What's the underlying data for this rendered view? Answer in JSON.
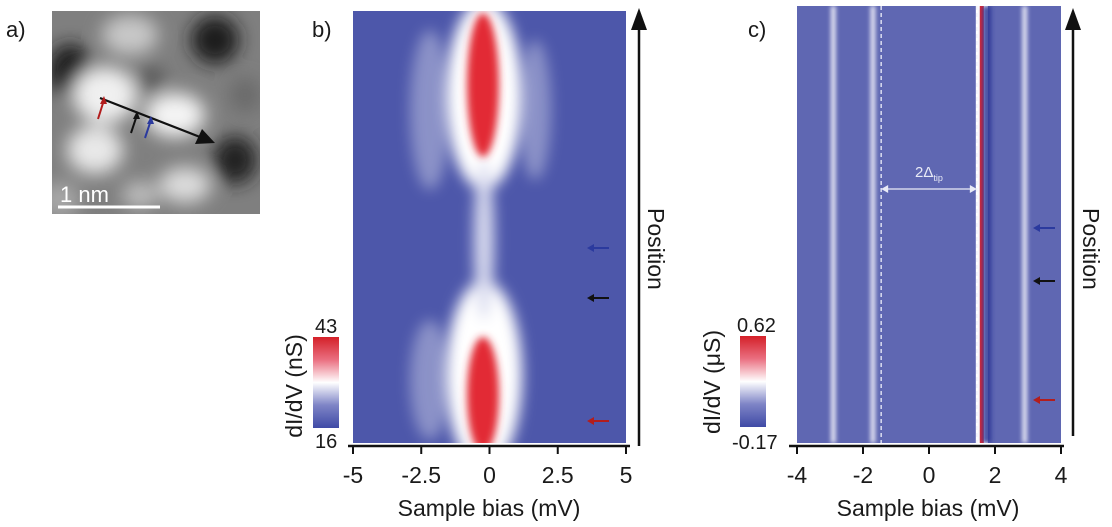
{
  "panels": {
    "a": {
      "label": "a)",
      "scale_bar": "1 nm",
      "arrow_colors": [
        "#b21d1d",
        "#111111",
        "#2b3a9e"
      ]
    },
    "b": {
      "label": "b)",
      "position_label": "Position",
      "colorbar": {
        "label": "dI/dV (nS)",
        "max": "43",
        "min": "16"
      },
      "xlabel": "Sample bias (mV)",
      "xticks": [
        "-5",
        "-2.5",
        "0",
        "2.5",
        "5"
      ]
    },
    "c": {
      "label": "c)",
      "position_label": "Position",
      "colorbar": {
        "label": "dI/dV (μS)",
        "max": "0.62",
        "min": "-0.17"
      },
      "xlabel": "Sample bias (mV)",
      "xticks": [
        "-4",
        "-2",
        "0",
        "2",
        "4"
      ],
      "gap_label": "2Δ",
      "gap_sub": "tip"
    }
  },
  "chart_data": [
    {
      "type": "heatmap",
      "panel": "b",
      "xlabel": "Sample bias (mV)",
      "ylabel": "Position",
      "xlim": [
        -5,
        5
      ],
      "xticks": [
        -5,
        -2.5,
        0,
        2.5,
        5
      ],
      "colorbar": {
        "label": "dI/dV (nS)",
        "min": 16,
        "max": 43
      },
      "features": [
        {
          "bias_mV": -0.1,
          "position": "top",
          "description_value": "peak"
        },
        {
          "bias_mV": -0.1,
          "position": "bottom",
          "description_value": "peak"
        }
      ],
      "markers": [
        {
          "color": "#2b3a9e",
          "bias_mV": 3.8
        },
        {
          "color": "#111111",
          "bias_mV": 3.8
        },
        {
          "color": "#b21d1d",
          "bias_mV": 3.8
        }
      ]
    },
    {
      "type": "heatmap",
      "panel": "c",
      "xlabel": "Sample bias (mV)",
      "ylabel": "Position",
      "xlim": [
        -4,
        4
      ],
      "xticks": [
        -4,
        -2,
        0,
        2,
        4
      ],
      "colorbar": {
        "label": "dI/dV (μS)",
        "min": -0.17,
        "max": 0.62
      },
      "gap": {
        "from_mV": -1.45,
        "to_mV": 1.45
      },
      "lines": [
        {
          "bias_mV": -2.9,
          "kind": "light"
        },
        {
          "bias_mV": -1.7,
          "kind": "light"
        },
        {
          "bias_mV": 1.6,
          "kind": "red"
        },
        {
          "bias_mV": 1.75,
          "kind": "dark"
        },
        {
          "bias_mV": 2.9,
          "kind": "light"
        }
      ],
      "markers": [
        {
          "color": "#2b3a9e",
          "bias_mV": 3.8
        },
        {
          "color": "#111111",
          "bias_mV": 3.8
        },
        {
          "color": "#b21d1d",
          "bias_mV": 3.8
        }
      ]
    }
  ]
}
